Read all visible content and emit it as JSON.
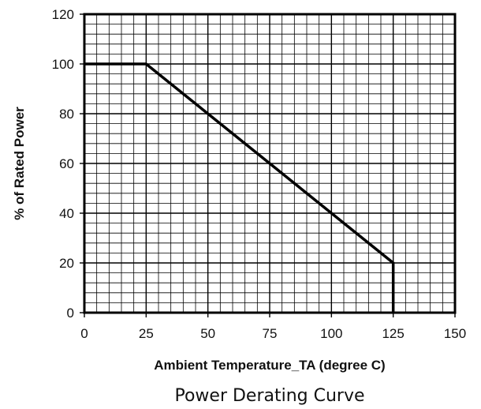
{
  "chart_data": {
    "type": "line",
    "title": "Power Derating Curve",
    "xlabel": "Ambient Temperature_TA (degree C)",
    "ylabel": "% of Rated Power",
    "xlim": [
      0,
      150
    ],
    "ylim": [
      0,
      120
    ],
    "x_ticks": [
      "0",
      "25",
      "50",
      "75",
      "100",
      "125",
      "150"
    ],
    "y_ticks": [
      "0",
      "20",
      "40",
      "60",
      "80",
      "100",
      "120"
    ],
    "grid": true,
    "series": [
      {
        "x": [
          0,
          25,
          125,
          125
        ],
        "y": [
          100,
          100,
          20,
          0
        ],
        "color": "#000000"
      }
    ]
  }
}
